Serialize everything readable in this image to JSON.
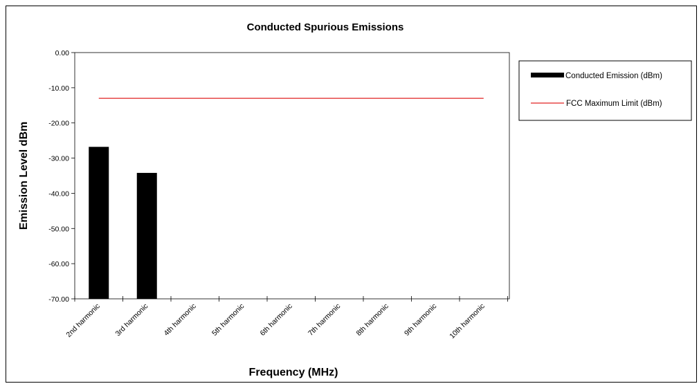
{
  "chart_data": {
    "type": "bar",
    "title": "Conducted Spurious Emissions",
    "xlabel": "Frequency (MHz)",
    "ylabel": "Emission Level dBm",
    "categories": [
      "2nd harmonic",
      "3rd harmonic",
      "4th harmonic",
      "5th harmonic",
      "6th harmonic",
      "7th harmonic",
      "8th harmonic",
      "9th harmonic",
      "10th harmonic"
    ],
    "series": [
      {
        "name": "Conducted Emission (dBm)",
        "type": "bar",
        "color": "#000000",
        "values": [
          -26.8,
          -34.2,
          null,
          null,
          null,
          null,
          null,
          null,
          null
        ]
      },
      {
        "name": "FCC Maximum Limit (dBm)",
        "type": "line",
        "color": "#e02020",
        "values": [
          -13,
          -13,
          -13,
          -13,
          -13,
          -13,
          -13,
          -13,
          -13
        ]
      }
    ],
    "ylim": [
      -70,
      0
    ],
    "yticks": [
      "0.00",
      "-10.00",
      "-20.00",
      "-30.00",
      "-40.00",
      "-50.00",
      "-60.00",
      "-70.00"
    ],
    "grid": false,
    "legend": "right"
  }
}
